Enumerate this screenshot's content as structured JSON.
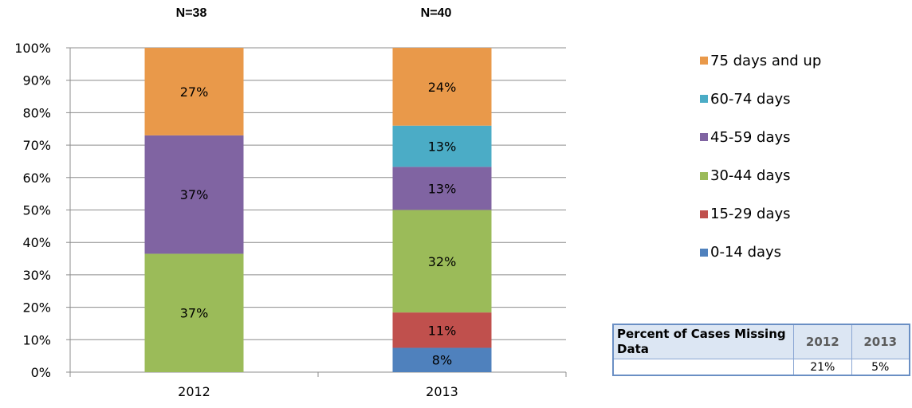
{
  "chart_data": {
    "type": "bar",
    "stacked": true,
    "categories": [
      "2012",
      "2013"
    ],
    "sample_sizes": [
      "N=38",
      "N=40"
    ],
    "yticks": [
      "0%",
      "10%",
      "20%",
      "30%",
      "40%",
      "50%",
      "60%",
      "70%",
      "80%",
      "90%",
      "100%"
    ],
    "ylim": [
      0,
      100
    ],
    "grid": true,
    "legend_position": "right",
    "series": [
      {
        "name": "0-14 days",
        "color": "#4f81bd",
        "values": [
          0,
          7.5
        ],
        "labels": [
          "",
          "8%"
        ]
      },
      {
        "name": "15-29 days",
        "color": "#c0504d",
        "values": [
          0,
          10.9
        ],
        "labels": [
          "",
          "11%"
        ]
      },
      {
        "name": "30-44 days",
        "color": "#9bbb59",
        "values": [
          36.5,
          31.6
        ],
        "labels": [
          "37%",
          "32%"
        ]
      },
      {
        "name": "45-59 days",
        "color": "#8064a2",
        "values": [
          36.5,
          13.3
        ],
        "labels": [
          "37%",
          "13%"
        ]
      },
      {
        "name": "60-74 days",
        "color": "#4bacc6",
        "values": [
          0,
          12.7
        ],
        "labels": [
          "",
          "13%"
        ]
      },
      {
        "name": "75 days and up",
        "color": "#e9994a",
        "values": [
          27,
          24
        ],
        "labels": [
          "27%",
          "24%"
        ]
      }
    ]
  },
  "missing_table": {
    "row_header": "Percent of Cases Missing Data",
    "years": [
      "2012",
      "2013"
    ],
    "values": [
      "21%",
      "5%"
    ]
  }
}
